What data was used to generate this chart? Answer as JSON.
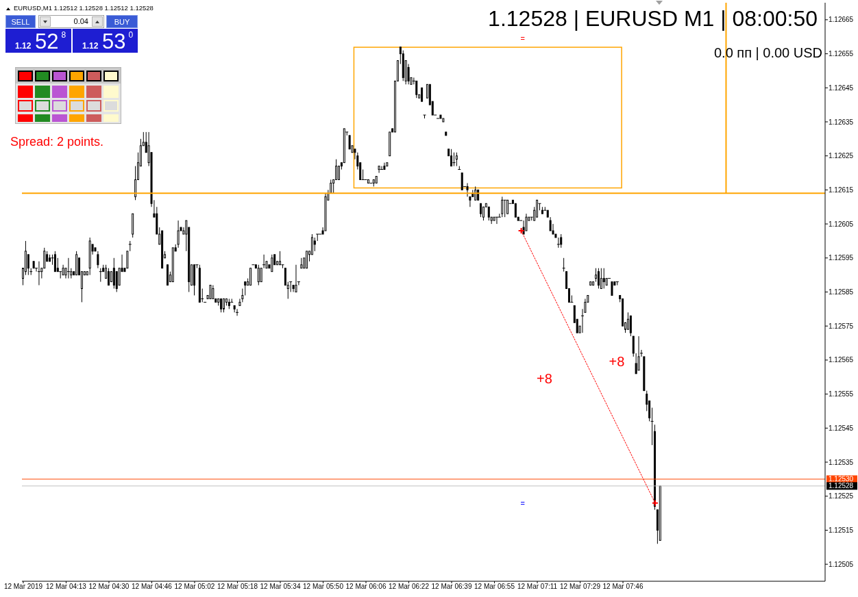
{
  "chart_data": {
    "type": "candlestick",
    "title": "1.12528 | EURUSD M1 | 08:00:50",
    "subtitle": "0.0 пп | 0.00 USD",
    "categories": [
      "12 Mar 2019",
      null,
      null,
      null,
      null,
      null,
      null,
      null,
      null,
      null,
      null,
      null,
      null,
      null,
      null,
      null,
      "12 Mar 04:13",
      null,
      null,
      null,
      null,
      null,
      null,
      null,
      null,
      null,
      null,
      null,
      null,
      null,
      null,
      null,
      "12 Mar 04:30",
      null,
      null,
      null,
      null,
      null,
      null,
      null,
      null,
      null,
      null,
      null,
      null,
      null,
      null,
      null,
      "12 Mar 04:46",
      null,
      null,
      null,
      null,
      null,
      null,
      null,
      null,
      null,
      null,
      null,
      null,
      null,
      null,
      null,
      "12 Mar 05:02",
      null,
      null,
      null,
      null,
      null,
      null,
      null,
      null,
      null,
      null,
      null,
      null,
      null,
      null,
      null,
      "12 Mar 05:18",
      null,
      null,
      null,
      null,
      null,
      null,
      null,
      null,
      null,
      null,
      null,
      null,
      null,
      null,
      null,
      "12 Mar 05:34",
      null,
      null,
      null,
      null,
      null,
      null,
      null,
      null,
      null,
      null,
      null,
      null,
      null,
      null,
      null,
      "12 Mar 05:50",
      null,
      null,
      null,
      null,
      null,
      null,
      null,
      null,
      null,
      null,
      null,
      null,
      null,
      null,
      null,
      "12 Mar 06:06",
      null,
      null,
      null,
      null,
      null,
      null,
      null,
      null,
      null,
      null,
      null,
      null,
      null,
      null,
      null,
      "12 Mar 06:22",
      null,
      null,
      null,
      null,
      null,
      null,
      null,
      null,
      null,
      null,
      null,
      null,
      null,
      null,
      null,
      "12 Mar 06:39",
      null,
      null,
      null,
      null,
      null,
      null,
      null,
      null,
      null,
      null,
      null,
      null,
      null,
      null,
      null,
      "12 Mar 06:55",
      null,
      null,
      null,
      null,
      null,
      null,
      null,
      null,
      null,
      null,
      null,
      null,
      null,
      null,
      null,
      "12 Mar 07:11",
      null,
      null,
      null,
      null,
      null,
      null,
      null,
      null,
      null,
      null,
      null,
      null,
      null,
      null,
      null,
      "12 Mar 07:29",
      null,
      null,
      null,
      null,
      null,
      null,
      null,
      null,
      null,
      null,
      null,
      null,
      null,
      null,
      null,
      "12 Mar 07:46",
      null,
      null,
      null,
      null,
      null,
      null,
      null,
      null,
      null,
      null,
      null,
      null,
      null,
      null,
      null,
      null,
      null,
      null,
      null,
      null,
      null,
      null,
      null,
      null,
      null,
      null,
      null,
      null,
      null,
      null,
      null,
      null,
      null,
      null,
      null,
      null,
      null,
      null,
      null,
      null,
      null,
      null,
      null,
      null,
      null,
      null,
      null,
      null,
      null,
      null,
      null,
      null,
      null,
      null,
      null,
      null,
      null,
      null,
      null,
      null,
      null,
      null,
      null,
      null,
      null,
      null,
      null,
      null,
      null,
      null,
      null,
      null,
      null,
      null,
      null
    ],
    "ohlc": [
      [
        1.12589,
        1.12592,
        1.12587,
        1.12592
      ],
      [
        1.12591,
        1.126,
        1.1259,
        1.12597
      ],
      [
        1.12596,
        1.12596,
        1.1259,
        1.12592
      ],
      [
        1.12591,
        1.12592,
        1.1259,
        1.12591
      ],
      [
        1.12594,
        1.12594,
        1.12592,
        1.12592
      ],
      [
        1.12592,
        1.12592,
        1.12591,
        1.12592
      ],
      [
        1.12591,
        1.12594,
        1.12587,
        1.12591
      ],
      [
        1.12591,
        1.12592,
        1.12589,
        1.12592
      ],
      [
        1.12592,
        1.12598,
        1.12592,
        1.12597
      ],
      [
        1.12596,
        1.12597,
        1.12594,
        1.12594
      ],
      [
        1.12595,
        1.12596,
        1.12594,
        1.12594
      ],
      [
        1.12595,
        1.12596,
        1.12593,
        1.12595
      ],
      [
        1.12596,
        1.12597,
        1.12591,
        1.12591
      ],
      [
        1.12592,
        1.12595,
        1.12591,
        1.12591
      ],
      [
        1.12591,
        1.12591,
        1.12589,
        1.12591
      ],
      [
        1.1259,
        1.12593,
        1.1259,
        1.12592
      ],
      [
        1.1259,
        1.12592,
        1.12589,
        1.12592
      ],
      [
        1.12591,
        1.12595,
        1.12589,
        1.12591
      ],
      [
        1.1259,
        1.12592,
        1.12589,
        1.12591
      ],
      [
        1.12591,
        1.12591,
        1.1259,
        1.1259
      ],
      [
        1.1259,
        1.12597,
        1.1259,
        1.12596
      ],
      [
        1.12595,
        1.12595,
        1.1259,
        1.1259
      ],
      [
        1.12586,
        1.12591,
        1.12582,
        1.12591
      ],
      [
        1.1259,
        1.12591,
        1.1259,
        1.12591
      ],
      [
        1.1259,
        1.12591,
        1.1259,
        1.12591
      ],
      [
        1.12592,
        1.12601,
        1.1259,
        1.126
      ],
      [
        1.12599,
        1.12599,
        1.12596,
        1.12597
      ],
      [
        1.12598,
        1.12598,
        1.12597,
        1.12597
      ],
      [
        1.12596,
        1.12597,
        1.12592,
        1.12593
      ],
      [
        1.12591,
        1.12592,
        1.12588,
        1.12591
      ],
      [
        1.12592,
        1.12593,
        1.12591,
        1.12591
      ],
      [
        1.12589,
        1.12593,
        1.12589,
        1.12592
      ],
      [
        1.12591,
        1.12592,
        1.12587,
        1.12587
      ],
      [
        1.12588,
        1.12591,
        1.12588,
        1.12591
      ],
      [
        1.12592,
        1.12595,
        1.12586,
        1.12587
      ],
      [
        1.12591,
        1.12591,
        1.12585,
        1.12586
      ],
      [
        1.12587,
        1.12592,
        1.12587,
        1.12592
      ],
      [
        1.12592,
        1.12596,
        1.12591,
        1.12591
      ],
      [
        1.12592,
        1.12592,
        1.12591,
        1.12591
      ],
      [
        1.12592,
        1.12597,
        1.12592,
        1.12597
      ],
      [
        1.12599,
        1.126,
        1.12597,
        1.12599
      ],
      [
        1.12602,
        1.12608,
        1.12601,
        1.12608
      ],
      [
        1.12613,
        1.12622,
        1.12612,
        1.12618
      ],
      [
        1.12618,
        1.12626,
        1.12618,
        1.12623
      ],
      [
        1.12622,
        1.1263,
        1.12622,
        1.12628
      ],
      [
        1.12628,
        1.12632,
        1.12628,
        1.12629
      ],
      [
        1.12629,
        1.12632,
        1.12626,
        1.12626
      ],
      [
        1.12623,
        1.12632,
        1.12622,
        1.12628
      ],
      [
        1.12626,
        1.12626,
        1.1261,
        1.12611
      ],
      [
        1.12608,
        1.12612,
        1.12607,
        1.12607
      ],
      [
        1.12608,
        1.1261,
        1.12602,
        1.12602
      ],
      [
        1.12599,
        1.12604,
        1.12599,
        1.12602
      ],
      [
        1.12603,
        1.12603,
        1.12592,
        1.12592
      ],
      [
        1.12595,
        1.12597,
        1.12595,
        1.12596
      ],
      [
        1.12593,
        1.12593,
        1.12587,
        1.12587
      ],
      [
        1.12588,
        1.12591,
        1.12588,
        1.1259
      ],
      [
        1.12588,
        1.12598,
        1.12588,
        1.12598
      ],
      [
        1.12598,
        1.12599,
        1.12597,
        1.12597
      ],
      [
        1.12599,
        1.12606,
        1.12598,
        1.12603
      ],
      [
        1.12604,
        1.12604,
        1.12603,
        1.12603
      ],
      [
        1.12602,
        1.12604,
        1.12602,
        1.12603
      ],
      [
        1.12602,
        1.12606,
        1.12597,
        1.12606
      ],
      [
        1.12604,
        1.12604,
        1.12585,
        1.12588
      ],
      [
        1.12587,
        1.12593,
        1.12587,
        1.12593
      ],
      [
        1.12593,
        1.12593,
        1.12584,
        1.12587
      ],
      [
        1.12593,
        1.12593,
        1.12592,
        1.12593
      ],
      [
        1.12592,
        1.12593,
        1.12582,
        1.12582
      ],
      [
        1.12583,
        1.12586,
        1.12582,
        1.12583
      ],
      [
        1.12582,
        1.12582,
        1.12582,
        1.12582
      ],
      [
        1.12583,
        1.12584,
        1.12583,
        1.12584
      ],
      [
        1.12583,
        1.12587,
        1.12583,
        1.12587
      ],
      [
        1.12583,
        1.12587,
        1.12583,
        1.12586
      ],
      [
        1.12583,
        1.12583,
        1.12582,
        1.12582
      ],
      [
        1.12582,
        1.12583,
        1.12581,
        1.12583
      ],
      [
        1.12583,
        1.12583,
        1.12579,
        1.1258
      ],
      [
        1.1258,
        1.12583,
        1.12579,
        1.12583
      ],
      [
        1.12582,
        1.12583,
        1.12581,
        1.12583
      ],
      [
        1.12582,
        1.12583,
        1.1258,
        1.12581
      ],
      [
        1.12582,
        1.12583,
        1.12582,
        1.12582
      ],
      [
        1.12581,
        1.12581,
        1.12579,
        1.1258
      ],
      [
        1.12579,
        1.1258,
        1.12578,
        1.12579
      ],
      [
        1.12581,
        1.12583,
        1.12581,
        1.12582
      ],
      [
        1.12583,
        1.12586,
        1.12582,
        1.12584
      ],
      [
        1.12588,
        1.12588,
        1.12584,
        1.12587
      ],
      [
        1.12587,
        1.12589,
        1.12587,
        1.12588
      ],
      [
        1.12587,
        1.12592,
        1.12587,
        1.12592
      ],
      [
        1.12593,
        1.12593,
        1.12593,
        1.12593
      ],
      [
        1.12593,
        1.12593,
        1.12592,
        1.12592
      ],
      [
        1.12588,
        1.12593,
        1.12587,
        1.12592
      ],
      [
        1.12588,
        1.12592,
        1.12588,
        1.12592
      ],
      [
        1.12593,
        1.12596,
        1.12592,
        1.12593
      ],
      [
        1.12592,
        1.12594,
        1.12592,
        1.12594
      ],
      [
        1.12593,
        1.12593,
        1.12592,
        1.12592
      ],
      [
        1.12591,
        1.12596,
        1.12591,
        1.12595
      ],
      [
        1.12596,
        1.12596,
        1.12593,
        1.12593
      ],
      [
        1.12593,
        1.12594,
        1.12593,
        1.12594
      ],
      [
        1.12593,
        1.12597,
        1.12593,
        1.12594
      ],
      [
        1.12593,
        1.12593,
        1.12592,
        1.12593
      ],
      [
        1.12592,
        1.12592,
        1.12587,
        1.12587
      ],
      [
        1.12586,
        1.12588,
        1.12583,
        1.12587
      ],
      [
        1.12588,
        1.12588,
        1.12585,
        1.12588
      ],
      [
        1.12587,
        1.12587,
        1.12585,
        1.12586
      ],
      [
        1.12585,
        1.12593,
        1.12585,
        1.12587
      ],
      [
        1.12588,
        1.12588,
        1.12587,
        1.12588
      ],
      [
        1.12592,
        1.12595,
        1.12592,
        1.12593
      ],
      [
        1.12592,
        1.12595,
        1.12592,
        1.12595
      ],
      [
        1.12592,
        1.12597,
        1.12592,
        1.12597
      ],
      [
        1.12596,
        1.12597,
        1.12594,
        1.12597
      ],
      [
        1.12596,
        1.12602,
        1.12596,
        1.12601
      ],
      [
        1.126,
        1.12601,
        1.12597,
        1.12599
      ],
      [
        1.12602,
        1.12602,
        1.126,
        1.12602
      ],
      [
        1.12602,
        1.12602,
        1.12602,
        1.12602
      ],
      [
        1.12603,
        1.12604,
        1.12602,
        1.12602
      ],
      [
        1.12603,
        1.12614,
        1.12603,
        1.12613
      ],
      [
        1.12612,
        1.12615,
        1.12612,
        1.12614
      ],
      [
        1.12614,
        1.12618,
        1.12614,
        1.12617
      ],
      [
        1.12617,
        1.12618,
        1.12614,
        1.12618
      ],
      [
        1.12618,
        1.12624,
        1.12618,
        1.12622
      ],
      [
        1.12618,
        1.12622,
        1.12618,
        1.12622
      ],
      [
        1.12623,
        1.12623,
        1.12621,
        1.12622
      ],
      [
        1.12623,
        1.12633,
        1.12623,
        1.12633
      ],
      [
        1.12632,
        1.12632,
        1.12631,
        1.12632
      ],
      [
        1.12631,
        1.12631,
        1.12627,
        1.12627
      ],
      [
        1.12626,
        1.12628,
        1.12626,
        1.12628
      ],
      [
        1.12627,
        1.12627,
        1.12624,
        1.12626
      ],
      [
        1.12625,
        1.12626,
        1.12621,
        1.12622
      ],
      [
        1.12623,
        1.12623,
        1.12618,
        1.12618
      ],
      [
        1.12618,
        1.12621,
        1.12618,
        1.12618
      ],
      [
        1.12618,
        1.12618,
        1.12618,
        1.12618
      ],
      [
        1.12617,
        1.12618,
        1.12617,
        1.12618
      ],
      [
        1.12617,
        1.12617,
        1.12617,
        1.12617
      ],
      [
        1.12617,
        1.12618,
        1.12616,
        1.12618
      ],
      [
        1.12617,
        1.12619,
        1.12617,
        1.12619
      ],
      [
        1.12621,
        1.12622,
        1.1262,
        1.12622
      ],
      [
        1.12621,
        1.12622,
        1.12621,
        1.12621
      ],
      [
        1.12622,
        1.12623,
        1.12621,
        1.12621
      ],
      [
        1.12622,
        1.12623,
        1.12622,
        1.12623
      ],
      [
        1.12625,
        1.12632,
        1.12625,
        1.12632
      ],
      [
        1.12633,
        1.12633,
        1.12632,
        1.12632
      ],
      [
        1.12632,
        1.12647,
        1.12632,
        1.12647
      ],
      [
        1.12647,
        1.12653,
        1.12647,
        1.12653
      ],
      [
        1.12657,
        1.12657,
        1.12652,
        1.12655
      ],
      [
        1.12655,
        1.12656,
        1.12647,
        1.12648
      ],
      [
        1.12647,
        1.12653,
        1.12646,
        1.12653
      ],
      [
        1.12651,
        1.12652,
        1.12646,
        1.12647
      ],
      [
        1.12646,
        1.12648,
        1.12646,
        1.12648
      ],
      [
        1.12647,
        1.12648,
        1.12646,
        1.12647
      ],
      [
        1.12647,
        1.12647,
        1.12642,
        1.12643
      ],
      [
        1.12642,
        1.12643,
        1.12642,
        1.12643
      ],
      [
        1.12645,
        1.12645,
        1.12641,
        1.12641
      ],
      [
        1.12637,
        1.12637,
        1.12636,
        1.12637
      ],
      [
        1.12642,
        1.12646,
        1.12642,
        1.12646
      ],
      [
        1.12646,
        1.12646,
        1.1264,
        1.1264
      ],
      [
        1.12641,
        1.12641,
        1.12637,
        1.12637
      ],
      [
        1.12637,
        1.12637,
        1.12637,
        1.12637
      ],
      [
        1.12636,
        1.12636,
        1.12636,
        1.12636
      ],
      [
        1.12637,
        1.12637,
        1.12636,
        1.12636
      ],
      [
        1.12635,
        1.12636,
        1.12635,
        1.12636
      ],
      [
        1.12632,
        1.12632,
        1.12631,
        1.12631
      ],
      [
        1.12627,
        1.12627,
        1.12625,
        1.12625
      ],
      [
        1.12625,
        1.12627,
        1.12622,
        1.12622
      ],
      [
        1.12623,
        1.12626,
        1.12622,
        1.12623
      ],
      [
        1.12624,
        1.12626,
        1.12622,
        1.12625
      ],
      [
        1.12621,
        1.12622,
        1.12621,
        1.12621
      ],
      [
        1.1262,
        1.1262,
        1.12615,
        1.12615
      ],
      [
        1.12616,
        1.12616,
        1.12616,
        1.12616
      ],
      [
        1.12616,
        1.12617,
        1.12613,
        1.12615
      ],
      [
        1.12613,
        1.12613,
        1.1261,
        1.12612
      ],
      [
        1.12614,
        1.12615,
        1.12613,
        1.12613
      ],
      [
        1.12612,
        1.12616,
        1.12612,
        1.12615
      ],
      [
        1.12615,
        1.12615,
        1.12612,
        1.12612
      ],
      [
        1.12611,
        1.12611,
        1.12607,
        1.12608
      ],
      [
        1.12607,
        1.1261,
        1.12606,
        1.1261
      ],
      [
        1.1261,
        1.12611,
        1.1261,
        1.12611
      ],
      [
        1.1261,
        1.1261,
        1.12606,
        1.12607
      ],
      [
        1.12606,
        1.12607,
        1.12605,
        1.12607
      ],
      [
        1.12606,
        1.12607,
        1.12606,
        1.12607
      ],
      [
        1.12607,
        1.12607,
        1.12605,
        1.12607
      ],
      [
        1.12607,
        1.12608,
        1.12607,
        1.12607
      ],
      [
        1.12608,
        1.12613,
        1.12607,
        1.12612
      ],
      [
        1.12612,
        1.12612,
        1.12607,
        1.12612
      ],
      [
        1.12608,
        1.12612,
        1.12608,
        1.12612
      ],
      [
        1.12611,
        1.12611,
        1.12611,
        1.12611
      ],
      [
        1.12612,
        1.12612,
        1.12611,
        1.12611
      ],
      [
        1.12611,
        1.12611,
        1.12607,
        1.12607
      ],
      [
        1.12607,
        1.12607,
        1.12606,
        1.12606
      ],
      [
        1.12606,
        1.12606,
        1.12606,
        1.12606
      ],
      [
        1.12604,
        1.12606,
        1.12602,
        1.12602
      ],
      [
        1.12603,
        1.12608,
        1.12603,
        1.12607
      ],
      [
        1.12606,
        1.12607,
        1.12606,
        1.12607
      ],
      [
        1.12607,
        1.12607,
        1.12606,
        1.12607
      ],
      [
        1.12606,
        1.1261,
        1.12606,
        1.12609
      ],
      [
        1.12607,
        1.12612,
        1.12607,
        1.12612
      ],
      [
        1.12611,
        1.12611,
        1.12609,
        1.12611
      ],
      [
        1.12609,
        1.1261,
        1.12608,
        1.12608
      ],
      [
        1.12609,
        1.1261,
        1.12609,
        1.12609
      ],
      [
        1.12609,
        1.12609,
        1.12607,
        1.12607
      ],
      [
        1.12606,
        1.12607,
        1.12603,
        1.12603
      ],
      [
        1.12603,
        1.12605,
        1.12602,
        1.12602
      ],
      [
        1.12602,
        1.12602,
        1.12601,
        1.12601
      ],
      [
        1.12599,
        1.12601,
        1.12598,
        1.12599
      ],
      [
        1.12601,
        1.12602,
        1.12598,
        1.12599
      ],
      [
        1.12592,
        1.12595,
        1.12591,
        1.12592
      ],
      [
        1.12591,
        1.12591,
        1.12586,
        1.12586
      ],
      [
        1.12586,
        1.12586,
        1.12582,
        1.12582
      ],
      [
        1.12582,
        1.12584,
        1.12582,
        1.12582
      ],
      [
        1.12581,
        1.12581,
        1.12576,
        1.12576
      ],
      [
        1.12577,
        1.12577,
        1.12573,
        1.12573
      ],
      [
        1.12573,
        1.12575,
        1.12573,
        1.12575
      ],
      [
        1.12578,
        1.1258,
        1.12573,
        1.12578
      ],
      [
        1.12579,
        1.12583,
        1.12579,
        1.12582
      ],
      [
        1.12582,
        1.12584,
        1.12582,
        1.12584
      ],
      [
        1.12587,
        1.12588,
        1.12587,
        1.12588
      ],
      [
        1.12587,
        1.12588,
        1.12587,
        1.12588
      ],
      [
        1.12589,
        1.12592,
        1.12588,
        1.1259
      ],
      [
        1.12591,
        1.12592,
        1.12586,
        1.12587
      ],
      [
        1.12586,
        1.12592,
        1.12586,
        1.12589
      ],
      [
        1.12589,
        1.12592,
        1.12586,
        1.12588
      ],
      [
        1.12587,
        1.12589,
        1.12587,
        1.12589
      ],
      [
        1.12589,
        1.12589,
        1.12589,
        1.12589
      ],
      [
        1.12588,
        1.12588,
        1.12584,
        1.12584
      ],
      [
        1.12588,
        1.12588,
        1.12587,
        1.12587
      ],
      [
        1.12588,
        1.12588,
        1.12587,
        1.12588
      ],
      [
        1.12584,
        1.12584,
        1.12582,
        1.12583
      ],
      [
        1.12583,
        1.12583,
        1.12575,
        1.12575
      ],
      [
        1.12574,
        1.12576,
        1.12573,
        1.12576
      ],
      [
        1.12574,
        1.12579,
        1.12574,
        1.12577
      ],
      [
        1.12578,
        1.12578,
        1.12572,
        1.12573
      ],
      [
        1.12572,
        1.12572,
        1.12566,
        1.12567
      ],
      [
        1.12564,
        1.12567,
        1.12561,
        1.12561
      ],
      [
        1.12562,
        1.12572,
        1.12562,
        1.12566
      ],
      [
        1.12567,
        1.12568,
        1.12566,
        1.12567
      ],
      [
        1.12566,
        1.12566,
        1.12556,
        1.12556
      ],
      [
        1.12555,
        1.12556,
        1.1255,
        1.12552
      ],
      [
        1.12553,
        1.12553,
        1.12547,
        1.12548
      ],
      [
        1.12547,
        1.12551,
        1.1254,
        1.12547
      ],
      [
        1.12544,
        1.12546,
        1.12521,
        1.12522
      ],
      [
        1.12521,
        1.12521,
        1.12511,
        1.12515
      ],
      [
        1.12512,
        1.12528,
        1.12512,
        1.12528
      ],
      null,
      null,
      null,
      null,
      null,
      null,
      null,
      null,
      null,
      null,
      null,
      null,
      null,
      null,
      null,
      null,
      null,
      null,
      null,
      null,
      null,
      null,
      null,
      null,
      null,
      null,
      null,
      null,
      null,
      null,
      null,
      null,
      null,
      null,
      null,
      null,
      null,
      null,
      null,
      null,
      null,
      null,
      null,
      null,
      null,
      null,
      null,
      null,
      null,
      null,
      null,
      null,
      null,
      null,
      null,
      null,
      null,
      null,
      null,
      null,
      null
    ],
    "color": "#000000",
    "series": [
      {
        "type": "line",
        "color": "#ff0000",
        "line_style": "dotted",
        "marker": "cross",
        "values": [
          null,
          null,
          null,
          null,
          null,
          null,
          null,
          null,
          null,
          null,
          null,
          null,
          null,
          null,
          null,
          null,
          null,
          null,
          null,
          null,
          null,
          null,
          null,
          null,
          null,
          null,
          null,
          null,
          null,
          null,
          null,
          null,
          null,
          null,
          null,
          null,
          null,
          null,
          null,
          null,
          null,
          null,
          null,
          null,
          null,
          null,
          null,
          null,
          null,
          null,
          null,
          null,
          null,
          null,
          null,
          null,
          null,
          null,
          null,
          null,
          null,
          null,
          null,
          null,
          null,
          null,
          null,
          null,
          null,
          null,
          null,
          null,
          null,
          null,
          null,
          null,
          null,
          null,
          null,
          null,
          null,
          null,
          null,
          null,
          null,
          null,
          null,
          null,
          null,
          null,
          null,
          null,
          null,
          null,
          null,
          null,
          null,
          null,
          null,
          null,
          null,
          null,
          null,
          null,
          null,
          null,
          null,
          null,
          null,
          null,
          null,
          null,
          null,
          null,
          null,
          null,
          null,
          null,
          null,
          null,
          null,
          null,
          null,
          null,
          null,
          null,
          null,
          null,
          null,
          null,
          null,
          null,
          null,
          null,
          null,
          null,
          null,
          null,
          null,
          null,
          null,
          null,
          null,
          null,
          null,
          null,
          null,
          null,
          null,
          null,
          null,
          null,
          null,
          null,
          null,
          null,
          null,
          null,
          null,
          null,
          null,
          null,
          null,
          null,
          null,
          null,
          null,
          null,
          null,
          null,
          null,
          null,
          null,
          null,
          null,
          null,
          null,
          null,
          null,
          null,
          null,
          null,
          null,
          null,
          null,
          null,
          1.12603,
          null,
          null,
          null,
          null,
          null,
          null,
          null,
          null,
          null,
          null,
          null,
          null,
          null,
          null,
          null,
          null,
          null,
          null,
          null,
          null,
          null,
          null,
          null,
          null,
          null,
          null,
          null,
          null,
          null,
          null,
          null,
          null,
          null,
          null,
          null,
          null,
          null,
          null,
          null,
          null,
          null,
          null,
          null,
          null,
          null,
          null,
          null,
          null,
          null,
          1.12523,
          null,
          null,
          null,
          null,
          null,
          null,
          null,
          null,
          null,
          null,
          null,
          null,
          null,
          null,
          null,
          null,
          null,
          null,
          null,
          null,
          null,
          null,
          null,
          null,
          null,
          null,
          null,
          null,
          null,
          null,
          null,
          null,
          null,
          null,
          null,
          null,
          null,
          null,
          null,
          null,
          null,
          null,
          null,
          null,
          null,
          null,
          null,
          null,
          null,
          null,
          null,
          null,
          null,
          null,
          null,
          null,
          null,
          null,
          null,
          null,
          null,
          null,
          null
        ]
      }
    ],
    "ylim": [
      1.125,
      1.1267
    ],
    "yticks": [
      1.12505,
      1.12515,
      1.12525,
      1.12535,
      1.12545,
      1.12555,
      1.12565,
      1.12575,
      1.12585,
      1.12595,
      1.12605,
      1.12615,
      1.12625,
      1.12635,
      1.12645,
      1.12655,
      1.12665
    ],
    "ref_lines": [
      {
        "axis": "y",
        "value": 1.12614,
        "color": "#ffa500"
      },
      {
        "axis": "y",
        "value": 1.1253,
        "label": "1.12530",
        "color": "#ff4500"
      },
      {
        "axis": "y",
        "value": 1.12528,
        "label": "1.12528",
        "color": "#c0c0c0"
      }
    ],
    "annotations": [
      "EURUSD,M1 1.12512 1.12528 1.12512 1.12528",
      "SELL",
      "0.04",
      "BUY",
      "1.12",
      "52$^{8}$",
      "1.12",
      "53$^{0}$",
      "Spread: 2 points.",
      "=",
      "=",
      "+8",
      "+8"
    ]
  }
}
